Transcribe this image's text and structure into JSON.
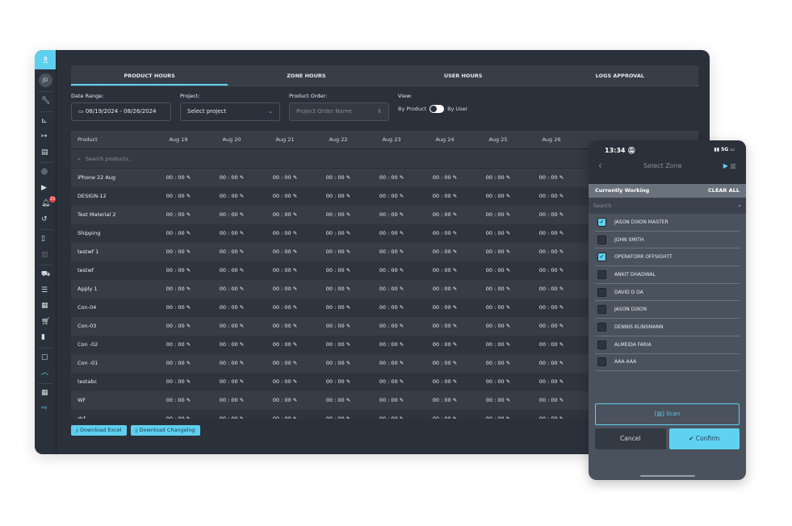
{
  "sidebar": {
    "avatar": "JD",
    "notification_count": "15"
  },
  "tabs": [
    "PRODUCT HOURS",
    "ZONE HOURS",
    "USER HOURS",
    "LOGS APPROVAL"
  ],
  "filters": {
    "date_label": "Date Range:",
    "date_value": "08/19/2024 - 08/26/2024",
    "project_label": "Project:",
    "project_value": "Select project",
    "order_label": "Product Order:",
    "order_placeholder": "Project Order Name",
    "view_label": "View:",
    "view_left": "By Product",
    "view_right": "By User"
  },
  "table": {
    "product_header": "Product",
    "dates": [
      "Aug 19",
      "Aug 20",
      "Aug 21",
      "Aug 22",
      "Aug 23",
      "Aug 24",
      "Aug 25",
      "Aug 26"
    ],
    "search_placeholder": "Search products...",
    "cell_value": "00 : 00",
    "products": [
      "iPhone 22 Aug",
      "DESIGN-12",
      "Test Material 2",
      "Shipping",
      "testwf 1",
      "testwf",
      "Apply 1",
      "Con-04",
      "Con-03",
      "Con -02",
      "Con -01",
      "testabc",
      "WF",
      "dsf"
    ]
  },
  "buttons": {
    "download_excel": "Download Excel",
    "download_changelog": "Download Changelog"
  },
  "phone": {
    "time": "13:34",
    "network": "5G",
    "title": "Select Zone",
    "section": "Currently Working",
    "clear_all": "CLEAR ALL",
    "search_placeholder": "Search",
    "items": [
      {
        "name": "JASON DIXON MASTER",
        "checked": true
      },
      {
        "name": "JOHN SMITH",
        "checked": false
      },
      {
        "name": "OPERATORR OFFSIGHTT",
        "checked": true
      },
      {
        "name": "ANKIT DHADWAL",
        "checked": false
      },
      {
        "name": "DAVID D DA",
        "checked": false
      },
      {
        "name": "JASON DIXON",
        "checked": false
      },
      {
        "name": "DENNIS KLINSMANN",
        "checked": false
      },
      {
        "name": "ALMEIDA FARIA",
        "checked": false
      },
      {
        "name": "AAA AAA",
        "checked": false
      }
    ],
    "scan": "Scan",
    "cancel": "Cancel",
    "confirm": "Confirm"
  },
  "colors": {
    "accent": "#5fcfee",
    "background": "#2b313b",
    "badge": "#e94545"
  }
}
